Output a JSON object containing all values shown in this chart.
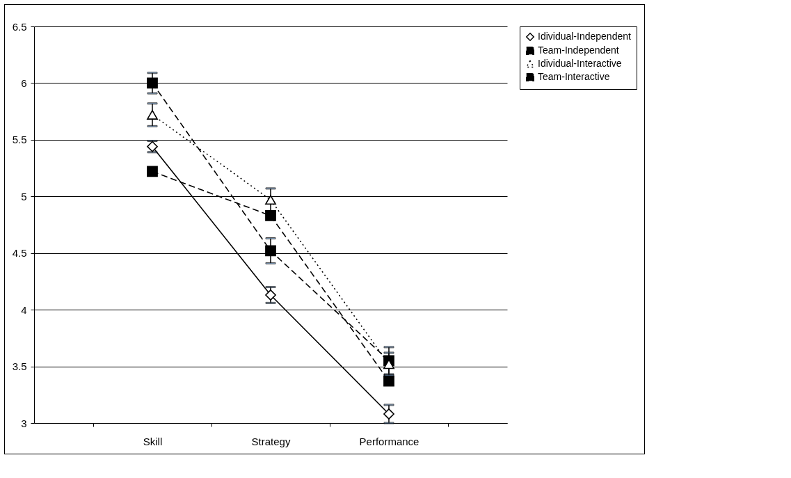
{
  "chart_data": {
    "type": "line",
    "categories": [
      "Skill",
      "Strategy",
      "Performance"
    ],
    "series": [
      {
        "name": "Idividual-Independent",
        "color": "#000000",
        "marker": "diamond",
        "line_style": "solid",
        "values": [
          5.44,
          4.13,
          3.08
        ],
        "errors": [
          0.05,
          0.07,
          0.08
        ]
      },
      {
        "name": "Team-Independent",
        "color": "#000000",
        "marker": "square",
        "line_style": "dashed",
        "values": [
          6.0,
          4.52,
          3.55
        ],
        "errors": [
          0.09,
          0.11,
          0.12
        ]
      },
      {
        "name": "Idividual-Interactive",
        "color": "#000000",
        "marker": "triangle",
        "line_style": "dotted",
        "values": [
          5.72,
          4.97,
          3.52
        ],
        "errors": [
          0.1,
          0.1,
          0.1
        ]
      },
      {
        "name": "Team-Interactive",
        "color": "#000000",
        "marker": "square",
        "line_style": "dashed",
        "values": [
          5.22,
          4.83,
          3.37
        ],
        "errors": [
          null,
          null,
          null
        ]
      }
    ],
    "ylim": [
      3,
      6.5
    ],
    "yticks": [
      {
        "value": 3,
        "label": "3"
      },
      3.5,
      {
        "value": 4,
        "label": "4"
      },
      4.5,
      {
        "value": 5,
        "label": "5"
      },
      5.5,
      {
        "value": 6,
        "label": "6"
      },
      6.5
    ],
    "grid": "y",
    "legend": "right"
  }
}
